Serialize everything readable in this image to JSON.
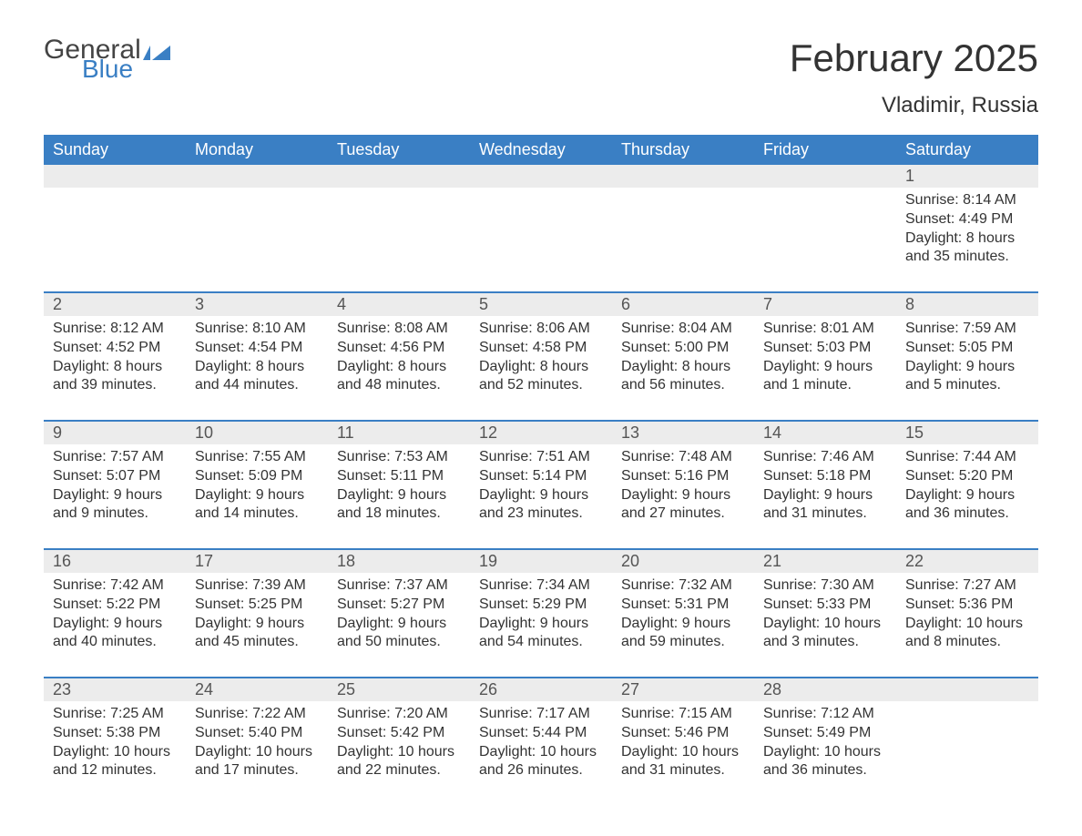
{
  "brand": {
    "name_general": "General",
    "name_blue": "Blue",
    "accent_color": "#3a7fc4",
    "text_color": "#444444"
  },
  "heading": {
    "month_title": "February 2025",
    "location": "Vladimir, Russia",
    "title_fontsize": 42,
    "location_fontsize": 24
  },
  "colors": {
    "header_bg": "#3a7fc4",
    "header_text": "#ffffff",
    "daynum_band_bg": "#ececec",
    "week_divider": "#3a7fc4",
    "body_text": "#333333",
    "page_bg": "#ffffff"
  },
  "day_labels": [
    "Sunday",
    "Monday",
    "Tuesday",
    "Wednesday",
    "Thursday",
    "Friday",
    "Saturday"
  ],
  "weeks": [
    {
      "days": [
        {
          "num": "",
          "sunrise": "",
          "sunset": "",
          "daylight": ""
        },
        {
          "num": "",
          "sunrise": "",
          "sunset": "",
          "daylight": ""
        },
        {
          "num": "",
          "sunrise": "",
          "sunset": "",
          "daylight": ""
        },
        {
          "num": "",
          "sunrise": "",
          "sunset": "",
          "daylight": ""
        },
        {
          "num": "",
          "sunrise": "",
          "sunset": "",
          "daylight": ""
        },
        {
          "num": "",
          "sunrise": "",
          "sunset": "",
          "daylight": ""
        },
        {
          "num": "1",
          "sunrise": "Sunrise: 8:14 AM",
          "sunset": "Sunset: 4:49 PM",
          "daylight": "Daylight: 8 hours and 35 minutes."
        }
      ]
    },
    {
      "days": [
        {
          "num": "2",
          "sunrise": "Sunrise: 8:12 AM",
          "sunset": "Sunset: 4:52 PM",
          "daylight": "Daylight: 8 hours and 39 minutes."
        },
        {
          "num": "3",
          "sunrise": "Sunrise: 8:10 AM",
          "sunset": "Sunset: 4:54 PM",
          "daylight": "Daylight: 8 hours and 44 minutes."
        },
        {
          "num": "4",
          "sunrise": "Sunrise: 8:08 AM",
          "sunset": "Sunset: 4:56 PM",
          "daylight": "Daylight: 8 hours and 48 minutes."
        },
        {
          "num": "5",
          "sunrise": "Sunrise: 8:06 AM",
          "sunset": "Sunset: 4:58 PM",
          "daylight": "Daylight: 8 hours and 52 minutes."
        },
        {
          "num": "6",
          "sunrise": "Sunrise: 8:04 AM",
          "sunset": "Sunset: 5:00 PM",
          "daylight": "Daylight: 8 hours and 56 minutes."
        },
        {
          "num": "7",
          "sunrise": "Sunrise: 8:01 AM",
          "sunset": "Sunset: 5:03 PM",
          "daylight": "Daylight: 9 hours and 1 minute."
        },
        {
          "num": "8",
          "sunrise": "Sunrise: 7:59 AM",
          "sunset": "Sunset: 5:05 PM",
          "daylight": "Daylight: 9 hours and 5 minutes."
        }
      ]
    },
    {
      "days": [
        {
          "num": "9",
          "sunrise": "Sunrise: 7:57 AM",
          "sunset": "Sunset: 5:07 PM",
          "daylight": "Daylight: 9 hours and 9 minutes."
        },
        {
          "num": "10",
          "sunrise": "Sunrise: 7:55 AM",
          "sunset": "Sunset: 5:09 PM",
          "daylight": "Daylight: 9 hours and 14 minutes."
        },
        {
          "num": "11",
          "sunrise": "Sunrise: 7:53 AM",
          "sunset": "Sunset: 5:11 PM",
          "daylight": "Daylight: 9 hours and 18 minutes."
        },
        {
          "num": "12",
          "sunrise": "Sunrise: 7:51 AM",
          "sunset": "Sunset: 5:14 PM",
          "daylight": "Daylight: 9 hours and 23 minutes."
        },
        {
          "num": "13",
          "sunrise": "Sunrise: 7:48 AM",
          "sunset": "Sunset: 5:16 PM",
          "daylight": "Daylight: 9 hours and 27 minutes."
        },
        {
          "num": "14",
          "sunrise": "Sunrise: 7:46 AM",
          "sunset": "Sunset: 5:18 PM",
          "daylight": "Daylight: 9 hours and 31 minutes."
        },
        {
          "num": "15",
          "sunrise": "Sunrise: 7:44 AM",
          "sunset": "Sunset: 5:20 PM",
          "daylight": "Daylight: 9 hours and 36 minutes."
        }
      ]
    },
    {
      "days": [
        {
          "num": "16",
          "sunrise": "Sunrise: 7:42 AM",
          "sunset": "Sunset: 5:22 PM",
          "daylight": "Daylight: 9 hours and 40 minutes."
        },
        {
          "num": "17",
          "sunrise": "Sunrise: 7:39 AM",
          "sunset": "Sunset: 5:25 PM",
          "daylight": "Daylight: 9 hours and 45 minutes."
        },
        {
          "num": "18",
          "sunrise": "Sunrise: 7:37 AM",
          "sunset": "Sunset: 5:27 PM",
          "daylight": "Daylight: 9 hours and 50 minutes."
        },
        {
          "num": "19",
          "sunrise": "Sunrise: 7:34 AM",
          "sunset": "Sunset: 5:29 PM",
          "daylight": "Daylight: 9 hours and 54 minutes."
        },
        {
          "num": "20",
          "sunrise": "Sunrise: 7:32 AM",
          "sunset": "Sunset: 5:31 PM",
          "daylight": "Daylight: 9 hours and 59 minutes."
        },
        {
          "num": "21",
          "sunrise": "Sunrise: 7:30 AM",
          "sunset": "Sunset: 5:33 PM",
          "daylight": "Daylight: 10 hours and 3 minutes."
        },
        {
          "num": "22",
          "sunrise": "Sunrise: 7:27 AM",
          "sunset": "Sunset: 5:36 PM",
          "daylight": "Daylight: 10 hours and 8 minutes."
        }
      ]
    },
    {
      "days": [
        {
          "num": "23",
          "sunrise": "Sunrise: 7:25 AM",
          "sunset": "Sunset: 5:38 PM",
          "daylight": "Daylight: 10 hours and 12 minutes."
        },
        {
          "num": "24",
          "sunrise": "Sunrise: 7:22 AM",
          "sunset": "Sunset: 5:40 PM",
          "daylight": "Daylight: 10 hours and 17 minutes."
        },
        {
          "num": "25",
          "sunrise": "Sunrise: 7:20 AM",
          "sunset": "Sunset: 5:42 PM",
          "daylight": "Daylight: 10 hours and 22 minutes."
        },
        {
          "num": "26",
          "sunrise": "Sunrise: 7:17 AM",
          "sunset": "Sunset: 5:44 PM",
          "daylight": "Daylight: 10 hours and 26 minutes."
        },
        {
          "num": "27",
          "sunrise": "Sunrise: 7:15 AM",
          "sunset": "Sunset: 5:46 PM",
          "daylight": "Daylight: 10 hours and 31 minutes."
        },
        {
          "num": "28",
          "sunrise": "Sunrise: 7:12 AM",
          "sunset": "Sunset: 5:49 PM",
          "daylight": "Daylight: 10 hours and 36 minutes."
        },
        {
          "num": "",
          "sunrise": "",
          "sunset": "",
          "daylight": ""
        }
      ]
    }
  ]
}
